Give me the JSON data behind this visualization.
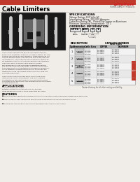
{
  "title": "Cable Limiters",
  "subtitle": "600 Volts AC",
  "brand": "Littelfuse",
  "brand_sub": "POWR-GARD® Products",
  "header_color": "#c0392b",
  "page_bg": "#f0ede8",
  "specs_title": "SPECIFICATIONS",
  "specs": [
    "Voltage Rating: 600 Volts AC",
    "Interrupting Rating: 200,000 Amperes",
    "Cable/Bus Rating: All   Plated/Dip Copper or Aluminum",
    "Minimum Operating Temperature: -50 C"
  ],
  "ordering_title": "ORDERING INFORMATION",
  "ordering_boxes": [
    "LFCL",
    "500",
    "C",
    "1"
  ],
  "table_col_header1": "DESCRIPTION",
  "table_col_header2": "CATALOG NUMBER",
  "table_sub_cols": [
    "Type",
    "Termination",
    "Cable Sizes",
    "COPPER",
    "ALUMINUM"
  ],
  "body_text": [
    "Cable limiters and fuseless devices incorporate very fast",
    "short-circuit protection, primarily in fuse/sub-station, but also",
    "to other substations such as industrial. These devices do not",
    "have an ampere rating, and cannot be used to provide over-",
    "load protection. Cable limiters are protecting by cable type",
    "for temporary short circuits during cable splicing operations.",
    "Their main use is to parallel-feed cables in conduit-",
    "switching/knee or cross-connector configurations where",
    "you may be limited on cable sizes. They also can be used",
    "to provide short-circuit protection to the service conductors.",
    "This is especially important when service conductors are",
    "tapped from large low-voltage networks or from large bus-",
    "connected equipment.",
    "",
    "Cable limiters have terminals which permit them to be",
    "installed in a variety of equipment. The most common",
    "configuration is the offset blade on one end and the offset",
    "connector on the other end. They provide the holes to replace",
    "a cable terminal lug."
  ],
  "apps_title": "APPLICATIONS",
  "apps": [
    "Service entrance enclosures",
    "Between conductors or cabinets from 4-0 systems",
    "Large feeders with three or more conductors per phase"
  ],
  "feat_title": "FEATURES",
  "features": [
    "Current limiting characteristics provide protection to conductor insulation and reduce damage when faults occur",
    "Properly applied cable limiters may permit the use of equipment with reduced withstand ratings",
    "Wide variety of terminations and cable ratings permit use in almost every situation"
  ],
  "footer": "Contact factory for all other rating availability.",
  "red_tab_color": "#c0392b",
  "table_rows": [
    {
      "type": "1",
      "term": "Cable to\nCable",
      "sizes": "#1/0AWG\n#2/0AWG\n#3/0AWG\n#4/0AWG",
      "copper": "LFCL100C1\nLFCL125C1\nLFCL150C1\nLFCL175C1\nLFCL200C1",
      "alum": "LFCL100A1\nLFCL125A1\nLFCL150A1\nLFCL175A1\nLFCL200A1"
    },
    {
      "type": "2",
      "term": "Cable to\nOffset Bus",
      "sizes": "#1/0AWG\n#2/0AWG\n#3/0AWG\n#4/0AWG",
      "copper": "LFCL100C2\nLFCL125C2\nLFCL150C2\nLFCL175C2\nLFCL200C2",
      "alum": "LFCL100A2\nLFCL125A2\nLFCL150A2\nLFCL175A2\nLFCL200A2"
    },
    {
      "type": "3",
      "term": "Straight Bus\nto\nOffset Bus",
      "sizes": "#1/0AWG\n#2/0AWG\n#3/0AWG\n#4/0AWG",
      "copper": "LFCL100C3\nLFCL125C3\nLFCL150C3\nLFCL175C3\nLFCL200C3",
      "alum": "LFCL100A3\nLFCL125A3\nLFCL150A3\nLFCL175A3\nLFCL200A3"
    },
    {
      "type": "4",
      "term": "Blade to\nCable",
      "sizes": "#1/0AWG\n#2/0AWG\n#3/0AWG\n#4/0AWG",
      "copper": "LFCL100C4\nLFCL125C4\nLFCL150C4\nLFCL175C4\nLFCL200C4",
      "alum": "LFCL100A4\nLFCL125A4\nLFCL150A4\nLFCL175A4\nLFCL200A4"
    },
    {
      "type": "5",
      "term": "Cable to\nOffset Bus",
      "sizes": "#1/0AWG\n#2/0AWG\n#3/0AWG\n#4/0AWG",
      "copper": "LFCL100C5\nLFCL125C5\nLFCL150C5\nLFCL175C5\nLFCL200C5",
      "alum": "LFCL100A5\nLFCL125A5\nLFCL150A5\nLFCL175A5\nLFCL200A5"
    }
  ]
}
